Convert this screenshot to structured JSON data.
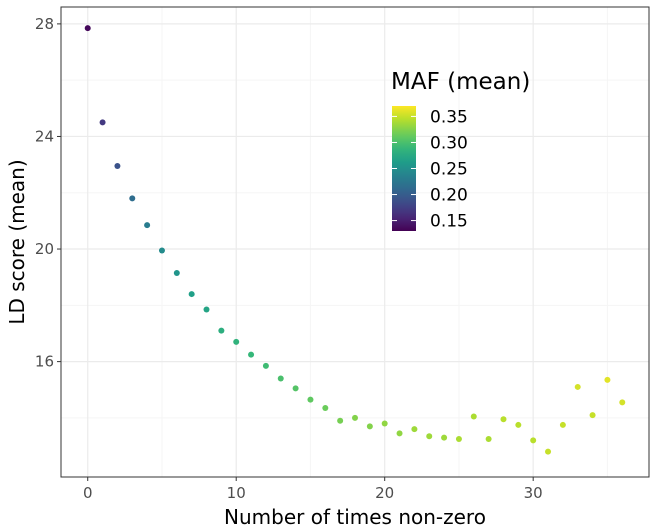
{
  "chart_data": {
    "type": "scatter",
    "title": "",
    "xlabel": "Number of times non-zero",
    "ylabel": "LD score (mean)",
    "xlim": [
      -1.8,
      37.8
    ],
    "ylim": [
      11.9,
      28.6
    ],
    "x_ticks": [
      0,
      10,
      20,
      30
    ],
    "x_tick_labels": [
      "0",
      "10",
      "20",
      "30"
    ],
    "y_ticks": [
      16,
      20,
      24,
      28
    ],
    "y_tick_labels": [
      "16",
      "20",
      "24",
      "28"
    ],
    "grid": true,
    "color_scale": "viridis",
    "color_range": [
      0.13,
      0.37
    ],
    "legend": {
      "title": "MAF (mean)",
      "position": "top-right",
      "ticks": [
        0.35,
        0.3,
        0.25,
        0.2,
        0.15
      ],
      "tick_labels": [
        "0.35",
        "0.30",
        "0.25",
        "0.20",
        "0.15"
      ]
    },
    "points": [
      {
        "x": 0,
        "y": 27.85,
        "maf": 0.135
      },
      {
        "x": 1,
        "y": 24.5,
        "maf": 0.17
      },
      {
        "x": 2,
        "y": 22.95,
        "maf": 0.19
      },
      {
        "x": 3,
        "y": 21.8,
        "maf": 0.215
      },
      {
        "x": 4,
        "y": 20.85,
        "maf": 0.23
      },
      {
        "x": 5,
        "y": 19.95,
        "maf": 0.245
      },
      {
        "x": 6,
        "y": 19.15,
        "maf": 0.255
      },
      {
        "x": 7,
        "y": 18.4,
        "maf": 0.265
      },
      {
        "x": 8,
        "y": 17.85,
        "maf": 0.27
      },
      {
        "x": 9,
        "y": 17.1,
        "maf": 0.28
      },
      {
        "x": 10,
        "y": 16.7,
        "maf": 0.285
      },
      {
        "x": 11,
        "y": 16.25,
        "maf": 0.29
      },
      {
        "x": 12,
        "y": 15.85,
        "maf": 0.295
      },
      {
        "x": 13,
        "y": 15.4,
        "maf": 0.3
      },
      {
        "x": 14,
        "y": 15.05,
        "maf": 0.305
      },
      {
        "x": 15,
        "y": 14.65,
        "maf": 0.31
      },
      {
        "x": 16,
        "y": 14.35,
        "maf": 0.315
      },
      {
        "x": 17,
        "y": 13.9,
        "maf": 0.32
      },
      {
        "x": 18,
        "y": 14.0,
        "maf": 0.325
      },
      {
        "x": 19,
        "y": 13.7,
        "maf": 0.325
      },
      {
        "x": 20,
        "y": 13.8,
        "maf": 0.33
      },
      {
        "x": 21,
        "y": 13.45,
        "maf": 0.33
      },
      {
        "x": 22,
        "y": 13.6,
        "maf": 0.335
      },
      {
        "x": 23,
        "y": 13.35,
        "maf": 0.335
      },
      {
        "x": 24,
        "y": 13.3,
        "maf": 0.335
      },
      {
        "x": 25,
        "y": 13.25,
        "maf": 0.34
      },
      {
        "x": 26,
        "y": 14.05,
        "maf": 0.34
      },
      {
        "x": 27,
        "y": 13.25,
        "maf": 0.34
      },
      {
        "x": 28,
        "y": 13.95,
        "maf": 0.345
      },
      {
        "x": 29,
        "y": 13.75,
        "maf": 0.345
      },
      {
        "x": 30,
        "y": 13.2,
        "maf": 0.345
      },
      {
        "x": 31,
        "y": 12.8,
        "maf": 0.35
      },
      {
        "x": 32,
        "y": 13.75,
        "maf": 0.35
      },
      {
        "x": 33,
        "y": 15.1,
        "maf": 0.355
      },
      {
        "x": 34,
        "y": 14.1,
        "maf": 0.35
      },
      {
        "x": 35,
        "y": 15.35,
        "maf": 0.36
      },
      {
        "x": 36,
        "y": 14.55,
        "maf": 0.355
      }
    ]
  },
  "colors": {
    "background": "#ffffff",
    "panel_border": "#333333",
    "grid_major": "#ebebeb",
    "grid_minor": "#f5f5f5",
    "tick_text": "#4d4d4d",
    "text": "#000000"
  }
}
